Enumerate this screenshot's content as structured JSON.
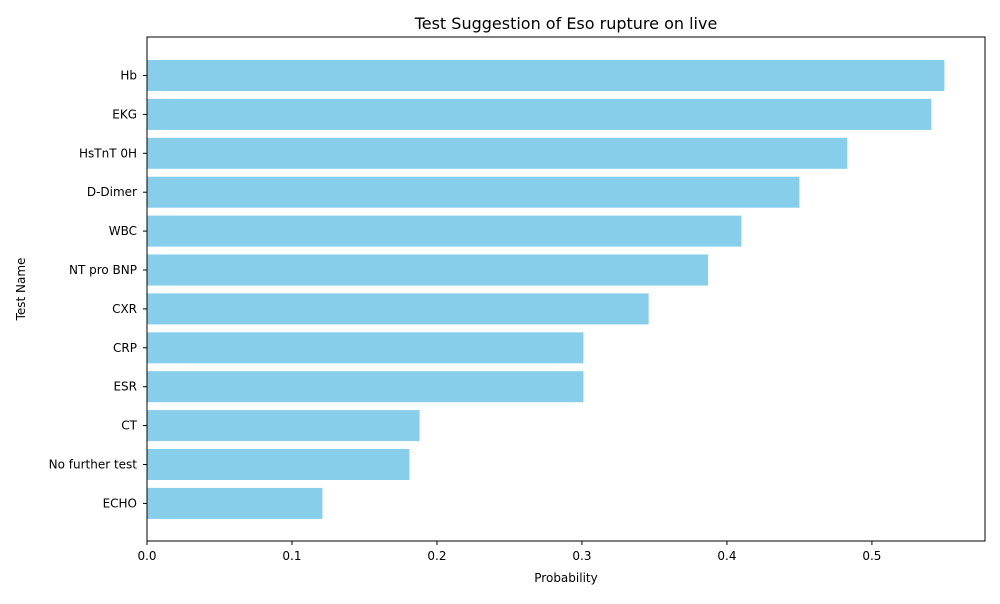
{
  "chart_data": {
    "type": "bar",
    "orientation": "horizontal",
    "title": "Test Suggestion of Eso rupture on live",
    "xlabel": "Probability",
    "ylabel": "Test Name",
    "categories": [
      "Hb",
      "EKG",
      "HsTnT 0H",
      "D-Dimer",
      "WBC",
      "NT pro BNP",
      "CXR",
      "CRP",
      "ESR",
      "CT",
      "No further test",
      "ECHO"
    ],
    "values": [
      0.55,
      0.541,
      0.483,
      0.45,
      0.41,
      0.387,
      0.346,
      0.301,
      0.301,
      0.188,
      0.181,
      0.121
    ],
    "xlim": [
      0,
      0.578
    ],
    "xticks": [
      0.0,
      0.1,
      0.2,
      0.3,
      0.4,
      0.5
    ],
    "xtick_labels": [
      "0.0",
      "0.1",
      "0.2",
      "0.3",
      "0.4",
      "0.5"
    ],
    "grid": false,
    "bar_color": "#87ceeb"
  }
}
